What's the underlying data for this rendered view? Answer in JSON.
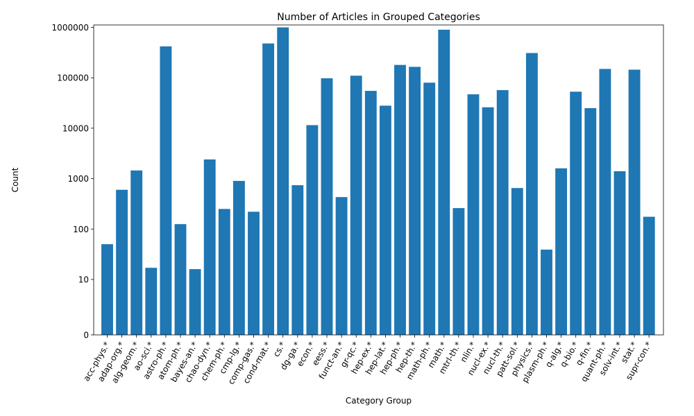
{
  "chart_data": {
    "type": "bar",
    "title": "Number of Articles in Grouped Categories",
    "xlabel": "Category Group",
    "ylabel": "Count",
    "yscale": "log",
    "ylim": [
      0,
      1000000
    ],
    "yticks": [
      {
        "value": 0,
        "label": "0"
      },
      {
        "value": 10,
        "label": "10"
      },
      {
        "value": 100,
        "label": "100"
      },
      {
        "value": 1000,
        "label": "1000"
      },
      {
        "value": 10000,
        "label": "10000"
      },
      {
        "value": 100000,
        "label": "100000"
      },
      {
        "value": 1000000,
        "label": "1000000"
      }
    ],
    "grid": false,
    "bar_color": "#1f77b4",
    "categories": [
      "acc-phys.*",
      "adap-org.*",
      "alg-geom.*",
      "ao-sci.*",
      "astro-ph.*",
      "atom-ph.*",
      "bayes-an.*",
      "chao-dyn.*",
      "chem-ph.*",
      "cmp-lg.*",
      "comp-gas.*",
      "cond-mat.*",
      "cs.*",
      "dg-ga.*",
      "econ.*",
      "eess.*",
      "funct-an.*",
      "gr-qc.*",
      "hep-ex.*",
      "hep-lat.*",
      "hep-ph.*",
      "hep-th.*",
      "math-ph.*",
      "math.*",
      "mtrl-th.*",
      "nlin.*",
      "nucl-ex.*",
      "nucl-th.*",
      "patt-sol.*",
      "physics.*",
      "plasm-ph.*",
      "q-alg.*",
      "q-bio.*",
      "q-fin.*",
      "quant-ph.*",
      "solv-int.*",
      "stat.*",
      "supr-con.*"
    ],
    "values": [
      50,
      600,
      1450,
      17,
      420000,
      125,
      16,
      2400,
      250,
      900,
      220,
      480000,
      1000000,
      740,
      11500,
      98000,
      430,
      110000,
      55000,
      28000,
      180000,
      165000,
      80000,
      900000,
      260,
      47000,
      26000,
      57000,
      650,
      310000,
      39,
      1600,
      53000,
      25000,
      150000,
      1400,
      145000,
      175
    ]
  }
}
